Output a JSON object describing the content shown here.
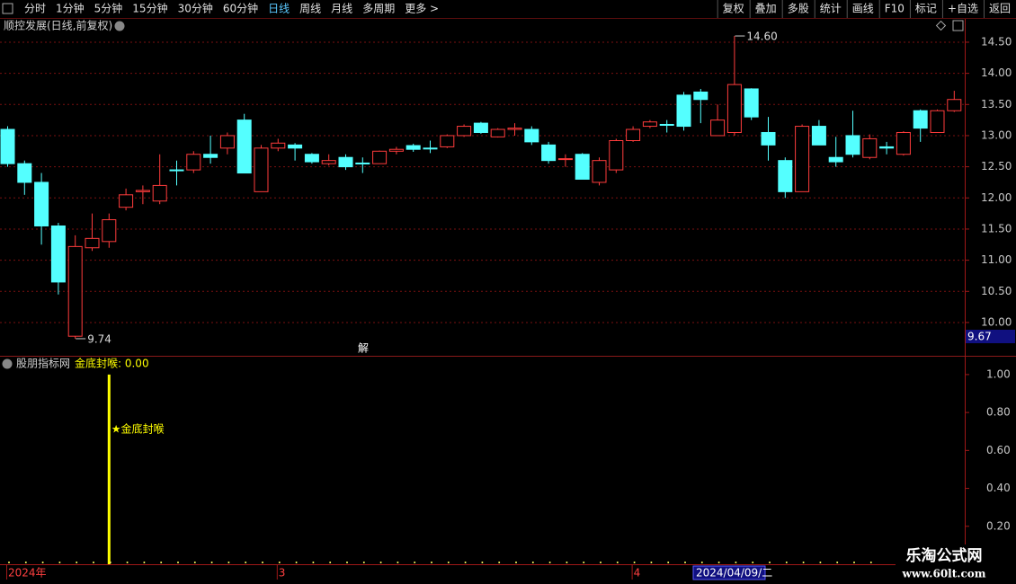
{
  "toolbar": {
    "left": [
      "分时",
      "1分钟",
      "5分钟",
      "15分钟",
      "30分钟",
      "60分钟",
      "日线",
      "周线",
      "月线",
      "多周期",
      "更多 >"
    ],
    "right": [
      "复权",
      "叠加",
      "多股",
      "统计",
      "画线",
      "F10",
      "标记",
      "+自选",
      "返回"
    ]
  },
  "watermark": {
    "title": "乐淘公式网",
    "url": "www.60lt.com"
  },
  "chart_data": [
    {
      "type": "candlestick",
      "title": "顺控发展(日线,前复权)",
      "categories": [
        "2024年",
        null,
        null,
        null,
        null,
        null,
        null,
        null,
        null,
        null,
        null,
        null,
        null,
        null,
        null,
        null,
        "3",
        null,
        null,
        null,
        null,
        null,
        null,
        null,
        null,
        null,
        null,
        null,
        null,
        null,
        null,
        null,
        null,
        null,
        null,
        null,
        null,
        "4",
        null,
        null,
        null,
        null,
        null,
        null,
        null,
        null,
        null,
        null,
        null,
        null,
        null,
        null,
        null,
        null,
        null,
        null,
        null
      ],
      "cursor_date": "2024/04/09/二",
      "cursor_value": "9.67",
      "marker_text": "解",
      "high_label": "14.60",
      "low_label": "9.74",
      "up_color": "#ff3c3c",
      "down_color": "#54ffff",
      "open": [
        13.1,
        12.55,
        12.25,
        11.55,
        9.78,
        11.2,
        11.3,
        11.85,
        12.1,
        11.95,
        12.45,
        12.45,
        12.7,
        12.8,
        13.25,
        12.1,
        12.8,
        12.85,
        12.7,
        12.55,
        12.65,
        12.56,
        12.55,
        12.75,
        12.84,
        12.8,
        12.82,
        13.0,
        13.2,
        12.98,
        13.1,
        13.1,
        12.85,
        12.62,
        12.7,
        12.25,
        12.45,
        12.92,
        13.15,
        13.18,
        13.65,
        13.7,
        13.0,
        13.05,
        13.75,
        13.05,
        12.6,
        12.1,
        13.15,
        12.65,
        13.0,
        12.65,
        12.82,
        12.7,
        13.4,
        13.05,
        13.4
      ],
      "high": [
        13.15,
        12.6,
        12.4,
        11.6,
        11.4,
        11.75,
        11.75,
        12.15,
        12.2,
        12.7,
        12.6,
        12.75,
        13.0,
        13.05,
        13.35,
        12.85,
        12.95,
        12.88,
        12.72,
        12.7,
        12.7,
        12.65,
        12.76,
        12.82,
        12.87,
        12.92,
        13.02,
        13.18,
        13.22,
        13.12,
        13.2,
        13.15,
        12.9,
        12.7,
        12.72,
        12.65,
        12.95,
        13.15,
        13.25,
        13.25,
        13.7,
        13.75,
        13.5,
        14.6,
        13.76,
        13.3,
        12.65,
        13.18,
        13.25,
        12.98,
        13.4,
        13.02,
        12.9,
        13.07,
        13.42,
        13.42,
        13.72
      ],
      "low": [
        12.5,
        12.05,
        11.25,
        10.45,
        9.74,
        11.15,
        11.2,
        11.8,
        11.9,
        11.9,
        12.2,
        12.4,
        12.55,
        12.7,
        12.4,
        12.1,
        12.75,
        12.6,
        12.55,
        12.52,
        12.45,
        12.4,
        12.55,
        12.7,
        12.74,
        12.72,
        12.8,
        12.98,
        13.03,
        12.97,
        13.0,
        12.85,
        12.55,
        12.5,
        12.3,
        12.2,
        12.4,
        12.9,
        13.12,
        13.05,
        13.08,
        13.2,
        13.0,
        13.0,
        13.25,
        12.6,
        12.0,
        12.1,
        12.85,
        12.5,
        12.65,
        12.62,
        12.7,
        12.68,
        12.9,
        13.05,
        13.38
      ],
      "close": [
        12.55,
        12.25,
        11.55,
        10.65,
        11.22,
        11.35,
        11.65,
        12.05,
        12.12,
        12.2,
        12.44,
        12.7,
        12.65,
        13.0,
        12.4,
        12.8,
        12.88,
        12.8,
        12.58,
        12.6,
        12.5,
        12.55,
        12.75,
        12.78,
        12.78,
        12.79,
        13.0,
        13.15,
        13.05,
        13.1,
        13.12,
        12.9,
        12.6,
        12.63,
        12.3,
        12.6,
        12.92,
        13.1,
        13.22,
        13.17,
        13.15,
        13.58,
        13.25,
        13.82,
        13.3,
        12.85,
        12.1,
        13.15,
        12.85,
        12.58,
        12.7,
        12.95,
        12.8,
        13.05,
        13.12,
        13.4,
        13.58
      ],
      "ylim": [
        9.48,
        14.86
      ],
      "yticks": [
        {
          "value": 10,
          "label": "10.00"
        },
        {
          "value": 10.5,
          "label": "10.50"
        },
        {
          "value": 11,
          "label": "11.00"
        },
        {
          "value": 11.5,
          "label": "11.50"
        },
        {
          "value": 12,
          "label": "12.00"
        },
        {
          "value": 12.5,
          "label": "12.50"
        },
        {
          "value": 13,
          "label": "13.00"
        },
        {
          "value": 13.5,
          "label": "13.50"
        },
        {
          "value": 14,
          "label": "14.00"
        },
        {
          "value": 14.5,
          "label": "14.50"
        }
      ],
      "grid": true
    },
    {
      "type": "bar",
      "title": "股朋指标网",
      "legend_text": "金底封喉: 0.00",
      "signal_label": "★金底封喉",
      "color": "#ffff00",
      "values": [
        0,
        0,
        0,
        0,
        0,
        0,
        1,
        0,
        0,
        0,
        0,
        0,
        0,
        0,
        0,
        0,
        0,
        0,
        0,
        0,
        0,
        0,
        0,
        0,
        0,
        0,
        0,
        0,
        0,
        0,
        0,
        0,
        0,
        0,
        0,
        0,
        0,
        0,
        0,
        0,
        0,
        0,
        0,
        0,
        0,
        0,
        0,
        0,
        0,
        0,
        0,
        0,
        0,
        0,
        0,
        0,
        0
      ],
      "ylim": [
        0,
        1.08
      ],
      "yticks": [
        {
          "value": 0.2,
          "label": "0.20"
        },
        {
          "value": 0.4,
          "label": "0.40"
        },
        {
          "value": 0.6,
          "label": "0.60"
        },
        {
          "value": 0.8,
          "label": "0.80"
        },
        {
          "value": 1,
          "label": "1.00"
        }
      ]
    }
  ]
}
